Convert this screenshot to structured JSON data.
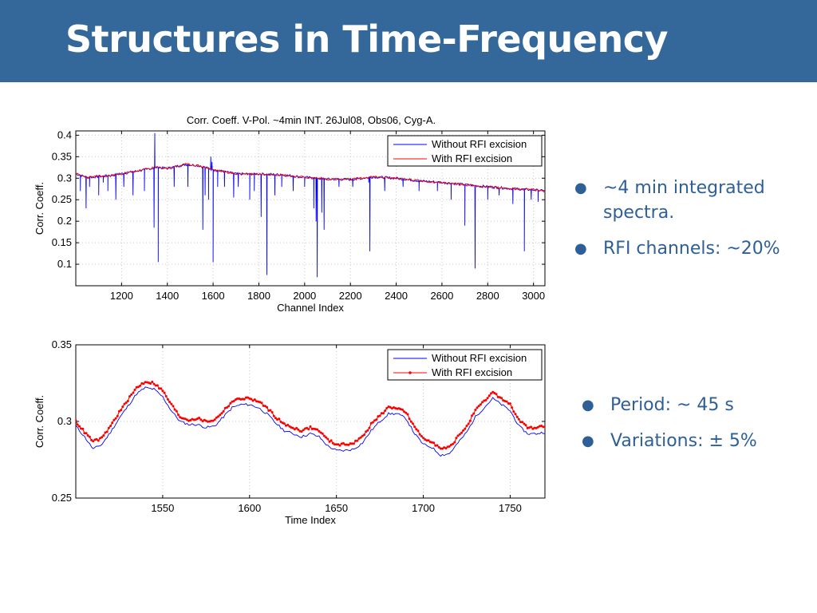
{
  "slide": {
    "title": "Structures in Time-Frequency",
    "colors": {
      "header_bg": "#34679a",
      "title_text": "#ffffff",
      "bullet_text": "#2e5f96"
    }
  },
  "bullets_top": [
    {
      "text": "~4 min integrated spectra."
    },
    {
      "text": "RFI channels: ~20%"
    }
  ],
  "bullets_bottom": [
    {
      "text": "Period: ~ 45 s"
    },
    {
      "text": "Variations: ± 5%"
    }
  ],
  "chart_data": [
    {
      "type": "line",
      "title": "Corr. Coeff. V-Pol. ~4min INT. 26Jul08, Obs06, Cyg-A.",
      "xlabel": "Channel Index",
      "ylabel": "Corr. Coeff.",
      "xlim": [
        1000,
        3050
      ],
      "ylim": [
        0.05,
        0.41
      ],
      "xticks": [
        1200,
        1400,
        1600,
        1800,
        2000,
        2200,
        2400,
        2600,
        2800,
        3000
      ],
      "yticks": [
        0.1,
        0.15,
        0.2,
        0.25,
        0.3,
        0.35,
        0.4
      ],
      "grid": true,
      "legend_position": "top-right",
      "series": [
        {
          "name": "Without RFI excision",
          "color": "#0000ff",
          "baseline": [
            [
              1000,
              0.31
            ],
            [
              1050,
              0.302
            ],
            [
              1150,
              0.306
            ],
            [
              1250,
              0.315
            ],
            [
              1350,
              0.325
            ],
            [
              1400,
              0.323
            ],
            [
              1480,
              0.332
            ],
            [
              1530,
              0.33
            ],
            [
              1600,
              0.32
            ],
            [
              1700,
              0.31
            ],
            [
              1800,
              0.31
            ],
            [
              1900,
              0.308
            ],
            [
              2000,
              0.302
            ],
            [
              2100,
              0.298
            ],
            [
              2200,
              0.297
            ],
            [
              2300,
              0.303
            ],
            [
              2400,
              0.3
            ],
            [
              2500,
              0.294
            ],
            [
              2600,
              0.29
            ],
            [
              2700,
              0.285
            ],
            [
              2800,
              0.28
            ],
            [
              2900,
              0.276
            ],
            [
              3000,
              0.273
            ],
            [
              3050,
              0.27
            ]
          ],
          "dips": [
            [
              1020,
              0.27
            ],
            [
              1045,
              0.23
            ],
            [
              1060,
              0.28
            ],
            [
              1100,
              0.26
            ],
            [
              1120,
              0.29
            ],
            [
              1140,
              0.27
            ],
            [
              1175,
              0.25
            ],
            [
              1210,
              0.28
            ],
            [
              1250,
              0.26
            ],
            [
              1300,
              0.27
            ],
            [
              1342,
              0.185
            ],
            [
              1360,
              0.105
            ],
            [
              1430,
              0.28
            ],
            [
              1490,
              0.28
            ],
            [
              1555,
              0.18
            ],
            [
              1565,
              0.26
            ],
            [
              1580,
              0.25
            ],
            [
              1600,
              0.105
            ],
            [
              1620,
              0.28
            ],
            [
              1650,
              0.28
            ],
            [
              1690,
              0.255
            ],
            [
              1710,
              0.28
            ],
            [
              1760,
              0.25
            ],
            [
              1780,
              0.27
            ],
            [
              1810,
              0.21
            ],
            [
              1835,
              0.075
            ],
            [
              1870,
              0.26
            ],
            [
              1900,
              0.28
            ],
            [
              1950,
              0.27
            ],
            [
              2000,
              0.28
            ],
            [
              2040,
              0.23
            ],
            [
              2050,
              0.2
            ],
            [
              2055,
              0.07
            ],
            [
              2075,
              0.22
            ],
            [
              2085,
              0.18
            ],
            [
              2150,
              0.28
            ],
            [
              2210,
              0.28
            ],
            [
              2280,
              0.29
            ],
            [
              2285,
              0.13
            ],
            [
              2350,
              0.27
            ],
            [
              2430,
              0.28
            ],
            [
              2500,
              0.27
            ],
            [
              2580,
              0.27
            ],
            [
              2640,
              0.25
            ],
            [
              2700,
              0.19
            ],
            [
              2745,
              0.09
            ],
            [
              2800,
              0.25
            ],
            [
              2850,
              0.26
            ],
            [
              2910,
              0.24
            ],
            [
              2960,
              0.13
            ],
            [
              2990,
              0.25
            ],
            [
              3020,
              0.245
            ]
          ],
          "spikes": [
            [
              1345,
              0.405
            ],
            [
              1590,
              0.35
            ],
            [
              1595,
              0.338
            ]
          ]
        },
        {
          "name": "With RFI excision",
          "color": "#ff0000",
          "baseline": [
            [
              1000,
              0.31
            ],
            [
              1050,
              0.302
            ],
            [
              1150,
              0.306
            ],
            [
              1250,
              0.315
            ],
            [
              1350,
              0.325
            ],
            [
              1400,
              0.323
            ],
            [
              1480,
              0.332
            ],
            [
              1530,
              0.33
            ],
            [
              1600,
              0.32
            ],
            [
              1700,
              0.31
            ],
            [
              1800,
              0.31
            ],
            [
              1900,
              0.308
            ],
            [
              2000,
              0.302
            ],
            [
              2100,
              0.298
            ],
            [
              2200,
              0.297
            ],
            [
              2300,
              0.303
            ],
            [
              2400,
              0.3
            ],
            [
              2500,
              0.294
            ],
            [
              2600,
              0.29
            ],
            [
              2700,
              0.285
            ],
            [
              2800,
              0.28
            ],
            [
              2900,
              0.276
            ],
            [
              3000,
              0.273
            ],
            [
              3050,
              0.27
            ]
          ]
        }
      ]
    },
    {
      "type": "line",
      "xlabel": "Time Index",
      "ylabel": "Corr. Coeff.",
      "xlim": [
        1500,
        1770
      ],
      "ylim": [
        0.25,
        0.35
      ],
      "xticks": [
        1550,
        1600,
        1650,
        1700,
        1750
      ],
      "yticks": [
        0.25,
        0.3,
        0.35
      ],
      "grid": true,
      "legend_position": "top-right",
      "series": [
        {
          "name": "Without RFI excision",
          "color": "#0000ff",
          "x": [
            1500,
            1505,
            1510,
            1515,
            1520,
            1525,
            1530,
            1535,
            1540,
            1545,
            1550,
            1555,
            1560,
            1565,
            1570,
            1575,
            1580,
            1585,
            1590,
            1595,
            1600,
            1605,
            1610,
            1615,
            1620,
            1625,
            1630,
            1635,
            1640,
            1645,
            1650,
            1655,
            1660,
            1665,
            1670,
            1675,
            1680,
            1685,
            1690,
            1695,
            1700,
            1705,
            1710,
            1715,
            1720,
            1725,
            1730,
            1735,
            1740,
            1745,
            1750,
            1755,
            1760,
            1765,
            1770
          ],
          "y": [
            0.297,
            0.29,
            0.282,
            0.285,
            0.293,
            0.302,
            0.31,
            0.318,
            0.322,
            0.321,
            0.316,
            0.307,
            0.3,
            0.298,
            0.298,
            0.296,
            0.297,
            0.303,
            0.309,
            0.311,
            0.311,
            0.309,
            0.305,
            0.299,
            0.294,
            0.292,
            0.29,
            0.292,
            0.29,
            0.284,
            0.281,
            0.281,
            0.282,
            0.286,
            0.294,
            0.3,
            0.305,
            0.305,
            0.302,
            0.292,
            0.285,
            0.283,
            0.278,
            0.279,
            0.286,
            0.293,
            0.303,
            0.309,
            0.315,
            0.311,
            0.307,
            0.297,
            0.292,
            0.292,
            0.293
          ]
        },
        {
          "name": "With RFI excision",
          "color": "#ff0000",
          "x": [
            1500,
            1505,
            1510,
            1515,
            1520,
            1525,
            1530,
            1535,
            1540,
            1545,
            1550,
            1555,
            1560,
            1565,
            1570,
            1575,
            1580,
            1585,
            1590,
            1595,
            1600,
            1605,
            1610,
            1615,
            1620,
            1625,
            1630,
            1635,
            1640,
            1645,
            1650,
            1655,
            1660,
            1665,
            1670,
            1675,
            1680,
            1685,
            1690,
            1695,
            1700,
            1705,
            1710,
            1715,
            1720,
            1725,
            1730,
            1735,
            1740,
            1745,
            1750,
            1755,
            1760,
            1765,
            1770
          ],
          "y": [
            0.3,
            0.293,
            0.287,
            0.289,
            0.297,
            0.306,
            0.314,
            0.322,
            0.326,
            0.325,
            0.32,
            0.311,
            0.303,
            0.301,
            0.302,
            0.3,
            0.301,
            0.307,
            0.313,
            0.315,
            0.315,
            0.313,
            0.309,
            0.303,
            0.298,
            0.296,
            0.294,
            0.296,
            0.294,
            0.288,
            0.285,
            0.285,
            0.286,
            0.29,
            0.298,
            0.304,
            0.309,
            0.309,
            0.306,
            0.296,
            0.289,
            0.287,
            0.282,
            0.283,
            0.29,
            0.297,
            0.307,
            0.313,
            0.319,
            0.315,
            0.311,
            0.301,
            0.296,
            0.296,
            0.297
          ]
        }
      ]
    }
  ]
}
